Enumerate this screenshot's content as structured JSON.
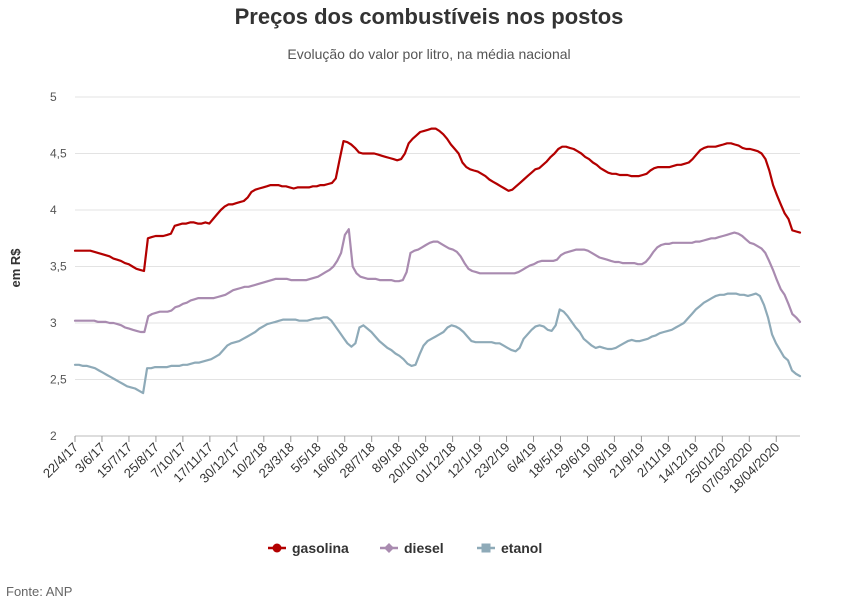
{
  "chart_data": {
    "type": "line",
    "title": "Preços dos combustíveis nos postos",
    "subtitle": "Evolução do valor por litro, na média nacional",
    "ylabel": "em R$",
    "xlabel": "",
    "ylim": [
      2,
      5
    ],
    "yticks": [
      2,
      2.5,
      3,
      3.5,
      4,
      4.5,
      5
    ],
    "ytick_labels": [
      "2",
      "2,5",
      "3",
      "3,5",
      "4",
      "4,5",
      "5"
    ],
    "xtick_labels": [
      "22/4/17",
      "3/6/17",
      "15/7/17",
      "25/8/17",
      "7/10/17",
      "17/11/17",
      "30/12/17",
      "10/2/18",
      "23/3/18",
      "5/5/18",
      "16/6/18",
      "28/7/18",
      "8/9/18",
      "20/10/18",
      "01/12/18",
      "12/1/19",
      "23/2/19",
      "6/4/19",
      "18/5/19",
      "29/6/19",
      "10/8/19",
      "21/9/19",
      "2/11/19",
      "14/12/19",
      "25/01/20",
      "07/03/2020",
      "18/04/2020"
    ],
    "grid": "horizontal",
    "legend": "bottom-center",
    "series": [
      {
        "name": "gasolina",
        "color": "#b30000",
        "values": [
          3.64,
          3.64,
          3.64,
          3.64,
          3.64,
          3.63,
          3.62,
          3.61,
          3.6,
          3.59,
          3.57,
          3.56,
          3.55,
          3.53,
          3.52,
          3.5,
          3.48,
          3.47,
          3.46,
          3.75,
          3.76,
          3.77,
          3.77,
          3.77,
          3.78,
          3.79,
          3.86,
          3.87,
          3.88,
          3.88,
          3.89,
          3.89,
          3.88,
          3.88,
          3.89,
          3.88,
          3.92,
          3.96,
          4.0,
          4.03,
          4.05,
          4.05,
          4.06,
          4.07,
          4.08,
          4.11,
          4.16,
          4.18,
          4.19,
          4.2,
          4.21,
          4.22,
          4.22,
          4.22,
          4.21,
          4.21,
          4.2,
          4.19,
          4.2,
          4.2,
          4.2,
          4.2,
          4.21,
          4.21,
          4.22,
          4.22,
          4.23,
          4.24,
          4.28,
          4.45,
          4.61,
          4.6,
          4.58,
          4.55,
          4.51,
          4.5,
          4.5,
          4.5,
          4.5,
          4.49,
          4.48,
          4.47,
          4.46,
          4.45,
          4.44,
          4.45,
          4.5,
          4.59,
          4.63,
          4.66,
          4.69,
          4.7,
          4.71,
          4.72,
          4.72,
          4.7,
          4.67,
          4.63,
          4.58,
          4.54,
          4.5,
          4.42,
          4.38,
          4.36,
          4.35,
          4.34,
          4.32,
          4.3,
          4.27,
          4.25,
          4.23,
          4.21,
          4.19,
          4.17,
          4.18,
          4.21,
          4.24,
          4.27,
          4.3,
          4.33,
          4.36,
          4.37,
          4.4,
          4.43,
          4.47,
          4.5,
          4.54,
          4.56,
          4.56,
          4.55,
          4.54,
          4.52,
          4.5,
          4.47,
          4.45,
          4.42,
          4.4,
          4.37,
          4.35,
          4.33,
          4.32,
          4.32,
          4.31,
          4.31,
          4.31,
          4.3,
          4.3,
          4.3,
          4.31,
          4.32,
          4.35,
          4.37,
          4.38,
          4.38,
          4.38,
          4.38,
          4.39,
          4.4,
          4.4,
          4.41,
          4.42,
          4.45,
          4.49,
          4.53,
          4.55,
          4.56,
          4.56,
          4.56,
          4.57,
          4.58,
          4.59,
          4.59,
          4.58,
          4.57,
          4.55,
          4.54,
          4.54,
          4.53,
          4.52,
          4.5,
          4.45,
          4.35,
          4.22,
          4.13,
          4.05,
          3.97,
          3.92,
          3.82,
          3.81,
          3.8
        ]
      },
      {
        "name": "diesel",
        "color": "#a98bb0",
        "values": [
          3.02,
          3.02,
          3.02,
          3.02,
          3.02,
          3.02,
          3.01,
          3.01,
          3.01,
          3.0,
          3.0,
          2.99,
          2.98,
          2.96,
          2.95,
          2.94,
          2.93,
          2.92,
          2.92,
          3.06,
          3.08,
          3.09,
          3.1,
          3.1,
          3.1,
          3.11,
          3.14,
          3.15,
          3.17,
          3.18,
          3.2,
          3.21,
          3.22,
          3.22,
          3.22,
          3.22,
          3.22,
          3.23,
          3.24,
          3.25,
          3.27,
          3.29,
          3.3,
          3.31,
          3.32,
          3.32,
          3.33,
          3.34,
          3.35,
          3.36,
          3.37,
          3.38,
          3.39,
          3.39,
          3.39,
          3.39,
          3.38,
          3.38,
          3.38,
          3.38,
          3.38,
          3.39,
          3.4,
          3.41,
          3.43,
          3.45,
          3.47,
          3.5,
          3.55,
          3.62,
          3.78,
          3.83,
          3.5,
          3.44,
          3.41,
          3.4,
          3.39,
          3.39,
          3.39,
          3.38,
          3.38,
          3.38,
          3.38,
          3.37,
          3.37,
          3.38,
          3.45,
          3.62,
          3.64,
          3.65,
          3.67,
          3.69,
          3.71,
          3.72,
          3.72,
          3.7,
          3.68,
          3.66,
          3.65,
          3.63,
          3.59,
          3.53,
          3.48,
          3.46,
          3.45,
          3.44,
          3.44,
          3.44,
          3.44,
          3.44,
          3.44,
          3.44,
          3.44,
          3.44,
          3.44,
          3.45,
          3.47,
          3.49,
          3.51,
          3.52,
          3.54,
          3.55,
          3.55,
          3.55,
          3.55,
          3.56,
          3.6,
          3.62,
          3.63,
          3.64,
          3.65,
          3.65,
          3.65,
          3.64,
          3.62,
          3.6,
          3.58,
          3.57,
          3.56,
          3.55,
          3.54,
          3.54,
          3.53,
          3.53,
          3.53,
          3.53,
          3.52,
          3.52,
          3.54,
          3.58,
          3.63,
          3.67,
          3.69,
          3.7,
          3.7,
          3.71,
          3.71,
          3.71,
          3.71,
          3.71,
          3.71,
          3.72,
          3.72,
          3.73,
          3.74,
          3.75,
          3.75,
          3.76,
          3.77,
          3.78,
          3.79,
          3.8,
          3.79,
          3.77,
          3.74,
          3.71,
          3.7,
          3.68,
          3.66,
          3.62,
          3.55,
          3.47,
          3.38,
          3.3,
          3.25,
          3.17,
          3.08,
          3.05,
          3.01
        ]
      },
      {
        "name": "etanol",
        "color": "#8eaab8",
        "values": [
          2.63,
          2.63,
          2.62,
          2.62,
          2.61,
          2.6,
          2.58,
          2.56,
          2.54,
          2.52,
          2.5,
          2.48,
          2.46,
          2.44,
          2.43,
          2.42,
          2.4,
          2.38,
          2.6,
          2.6,
          2.61,
          2.61,
          2.61,
          2.61,
          2.62,
          2.62,
          2.62,
          2.63,
          2.63,
          2.64,
          2.65,
          2.65,
          2.66,
          2.67,
          2.68,
          2.7,
          2.72,
          2.76,
          2.8,
          2.82,
          2.83,
          2.84,
          2.86,
          2.88,
          2.9,
          2.92,
          2.95,
          2.97,
          2.99,
          3.0,
          3.01,
          3.02,
          3.03,
          3.03,
          3.03,
          3.03,
          3.02,
          3.02,
          3.02,
          3.03,
          3.04,
          3.04,
          3.05,
          3.05,
          3.02,
          2.97,
          2.92,
          2.87,
          2.82,
          2.79,
          2.82,
          2.96,
          2.98,
          2.95,
          2.92,
          2.88,
          2.84,
          2.81,
          2.78,
          2.76,
          2.73,
          2.71,
          2.68,
          2.64,
          2.62,
          2.63,
          2.72,
          2.8,
          2.84,
          2.86,
          2.88,
          2.9,
          2.92,
          2.96,
          2.98,
          2.97,
          2.95,
          2.92,
          2.88,
          2.84,
          2.83,
          2.83,
          2.83,
          2.83,
          2.83,
          2.82,
          2.82,
          2.8,
          2.78,
          2.76,
          2.75,
          2.78,
          2.86,
          2.9,
          2.94,
          2.97,
          2.98,
          2.97,
          2.94,
          2.93,
          2.98,
          3.12,
          3.1,
          3.06,
          3.01,
          2.96,
          2.92,
          2.86,
          2.83,
          2.8,
          2.78,
          2.79,
          2.78,
          2.77,
          2.77,
          2.78,
          2.8,
          2.82,
          2.84,
          2.85,
          2.84,
          2.84,
          2.85,
          2.86,
          2.88,
          2.89,
          2.91,
          2.92,
          2.93,
          2.94,
          2.96,
          2.98,
          3.0,
          3.04,
          3.08,
          3.12,
          3.15,
          3.18,
          3.2,
          3.22,
          3.24,
          3.25,
          3.25,
          3.26,
          3.26,
          3.26,
          3.25,
          3.25,
          3.24,
          3.25,
          3.26,
          3.24,
          3.16,
          3.05,
          2.9,
          2.82,
          2.76,
          2.7,
          2.67,
          2.58,
          2.55,
          2.53
        ]
      }
    ]
  },
  "source": "Fonte: ANP"
}
